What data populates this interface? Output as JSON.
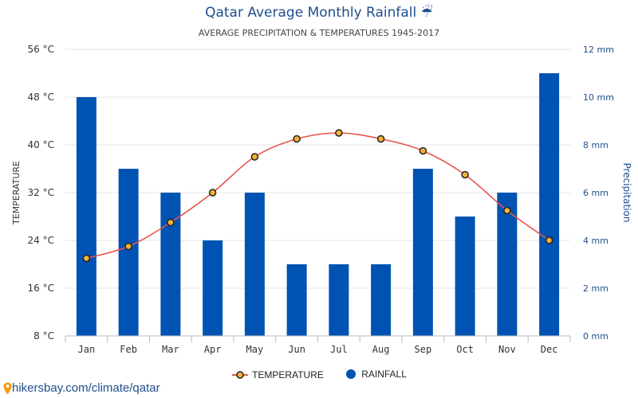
{
  "chart_data": {
    "type": "bar",
    "title": "Qatar Average Monthly Rainfall",
    "title_icon": "umbrella-icon",
    "subtitle": "AVERAGE PRECIPITATION & TEMPERATURES 1945-2017",
    "categories": [
      "Jan",
      "Feb",
      "Mar",
      "Apr",
      "May",
      "Jun",
      "Jul",
      "Aug",
      "Sep",
      "Oct",
      "Nov",
      "Dec"
    ],
    "series": [
      {
        "name": "RAINFALL",
        "type": "bar",
        "axis": "right",
        "unit": "mm",
        "color": "#0053b3",
        "values": [
          10,
          7,
          6,
          4,
          6,
          3,
          3,
          3,
          7,
          5,
          6,
          11
        ]
      },
      {
        "name": "TEMPERATURE",
        "type": "line",
        "axis": "left",
        "unit": "°C",
        "line_color": "#e8534e",
        "marker_fill": "#f5b335",
        "values": [
          21,
          23,
          27,
          32,
          38,
          41,
          42,
          41,
          39,
          35,
          29,
          24
        ]
      }
    ],
    "ylabel": "TEMPERATURE",
    "y2label": "Precipitation",
    "ylim": [
      8,
      56
    ],
    "y2lim": [
      0,
      12
    ],
    "yticks": [
      "8 °C",
      "16 °C",
      "24 °C",
      "32 °C",
      "40 °C",
      "48 °C",
      "56 °C"
    ],
    "y2ticks": [
      "0 mm",
      "2 mm",
      "4 mm",
      "6 mm",
      "8 mm",
      "10 mm",
      "12 mm"
    ],
    "grid": true,
    "legend_position": "bottom"
  },
  "legend": {
    "temperature_label": "TEMPERATURE",
    "rainfall_label": "RAINFALL"
  },
  "source": {
    "text": "hikersbay.com/climate/qatar",
    "icon": "location-pin-icon"
  }
}
